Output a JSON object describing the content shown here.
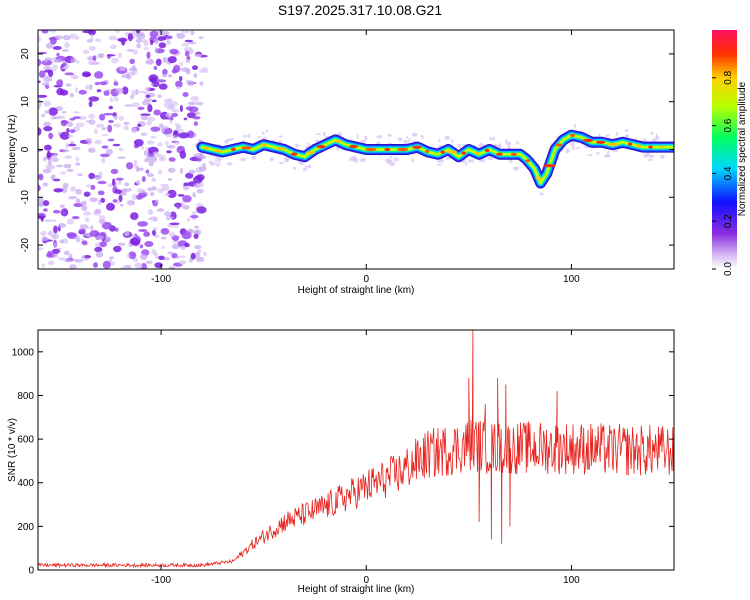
{
  "title": "S197.2025.317.10.08.G21",
  "chart_data": [
    {
      "type": "heatmap",
      "name": "spectrogram",
      "xlabel": "Height of straight line (km)",
      "ylabel": "Frequency (Hz)",
      "xlim": [
        -160,
        150
      ],
      "ylim": [
        -25,
        25
      ],
      "xticks": [
        -100,
        0,
        100
      ],
      "yticks": [
        -20,
        -10,
        0,
        10,
        20
      ],
      "noise_region_x": [
        -160,
        -80
      ],
      "ridge": {
        "x": [
          -80,
          -75,
          -70,
          -65,
          -60,
          -55,
          -50,
          -45,
          -40,
          -35,
          -30,
          -25,
          -20,
          -15,
          -10,
          -5,
          0,
          5,
          10,
          15,
          20,
          25,
          30,
          35,
          40,
          45,
          50,
          55,
          60,
          65,
          70,
          75,
          78,
          82,
          85,
          88,
          92,
          96,
          100,
          105,
          110,
          115,
          120,
          125,
          130,
          135,
          140,
          145,
          150
        ],
        "y": [
          0.5,
          0,
          -0.5,
          0,
          0.5,
          0,
          1,
          0.5,
          0,
          -1,
          -1.5,
          0,
          1,
          2,
          1,
          0.5,
          0,
          0,
          0,
          0,
          0,
          0.5,
          -0.5,
          -1,
          0,
          -1.5,
          0,
          -1,
          0,
          -1,
          -1,
          -1,
          -2,
          -4,
          -7,
          -5,
          0,
          2,
          3,
          2.5,
          1.5,
          1.5,
          1,
          1.5,
          1,
          0.5,
          0.5,
          0.5,
          0.5
        ]
      },
      "colorbar": {
        "label": "Normalized spectral amplitude",
        "range": [
          0,
          1
        ],
        "ticks": [
          "0.0",
          "0.2",
          "0.4",
          "0.6",
          "0.8"
        ]
      }
    },
    {
      "type": "line",
      "name": "snr",
      "xlabel": "Height of straight line (km)",
      "ylabel": "SNR (10 * v/v)",
      "xlim": [
        -160,
        150
      ],
      "ylim": [
        0,
        1100
      ],
      "xticks": [
        -100,
        0,
        100
      ],
      "yticks": [
        0,
        200,
        400,
        600,
        800,
        1000
      ],
      "color": "#e8231e",
      "trend": {
        "x": [
          -160,
          -80,
          -65,
          -55,
          -40,
          -20,
          0,
          15,
          30,
          45,
          52,
          60,
          70,
          80,
          90,
          100,
          120,
          150
        ],
        "y": [
          22,
          22,
          40,
          120,
          220,
          290,
          380,
          440,
          530,
          560,
          580,
          560,
          560,
          560,
          560,
          560,
          550,
          545
        ]
      },
      "bursts": [
        {
          "x": 50,
          "y": 880
        },
        {
          "x": 52,
          "y": 1100
        },
        {
          "x": 55,
          "y": 220
        },
        {
          "x": 58,
          "y": 760
        },
        {
          "x": 61,
          "y": 140
        },
        {
          "x": 64,
          "y": 880
        },
        {
          "x": 66,
          "y": 120
        },
        {
          "x": 68,
          "y": 850
        },
        {
          "x": 70,
          "y": 200
        },
        {
          "x": 93,
          "y": 820
        }
      ]
    }
  ]
}
